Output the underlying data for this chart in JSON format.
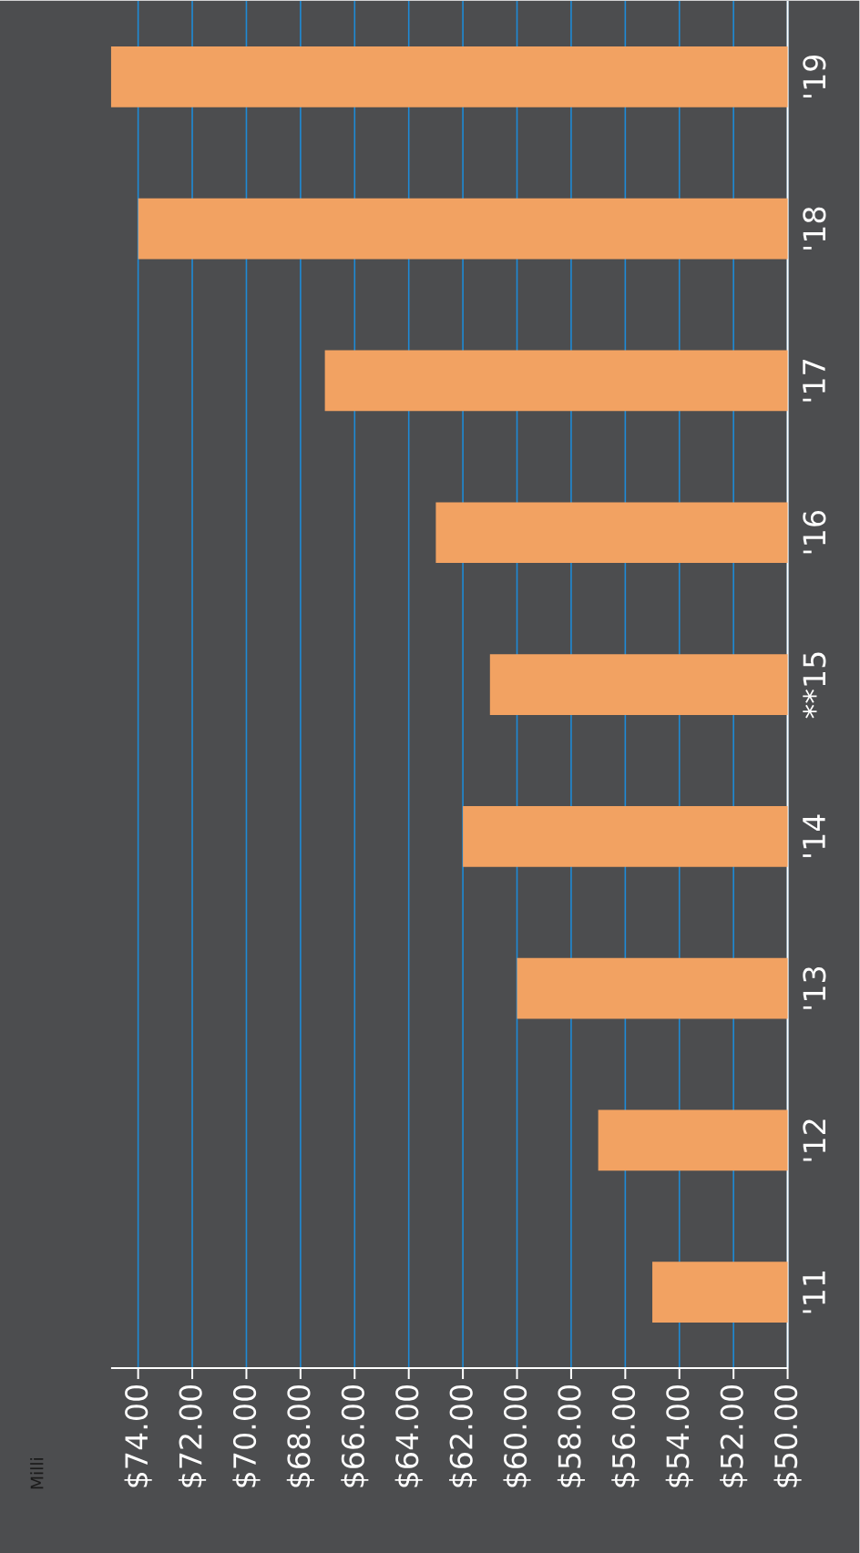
{
  "chart_data": {
    "type": "bar",
    "orientation": "horizontal",
    "annotations": [
      "Milli"
    ],
    "categories": [
      "'19",
      "'18",
      "'17",
      "'16",
      "**15",
      "'14",
      "'13",
      "'12",
      "'11"
    ],
    "values": [
      75,
      74,
      67.1,
      63,
      61,
      62,
      60,
      57,
      55
    ],
    "color": "#f2a262",
    "xlim": [
      75,
      50
    ],
    "xticks": [
      {
        "value": 74,
        "label": "$74.00"
      },
      {
        "value": 72,
        "label": "$72.00"
      },
      {
        "value": 70,
        "label": "$70.00"
      },
      {
        "value": 68,
        "label": "$68.00"
      },
      {
        "value": 66,
        "label": "$66.00"
      },
      {
        "value": 64,
        "label": "$64.00"
      },
      {
        "value": 62,
        "label": "$62.00"
      },
      {
        "value": 60,
        "label": "$60.00"
      },
      {
        "value": 58,
        "label": "$58.00"
      },
      {
        "value": 56,
        "label": "$56.00"
      },
      {
        "value": 54,
        "label": "$54.00"
      },
      {
        "value": 52,
        "label": "$52.00"
      },
      {
        "value": 50,
        "label": "$50.00"
      }
    ],
    "grid": "x"
  }
}
